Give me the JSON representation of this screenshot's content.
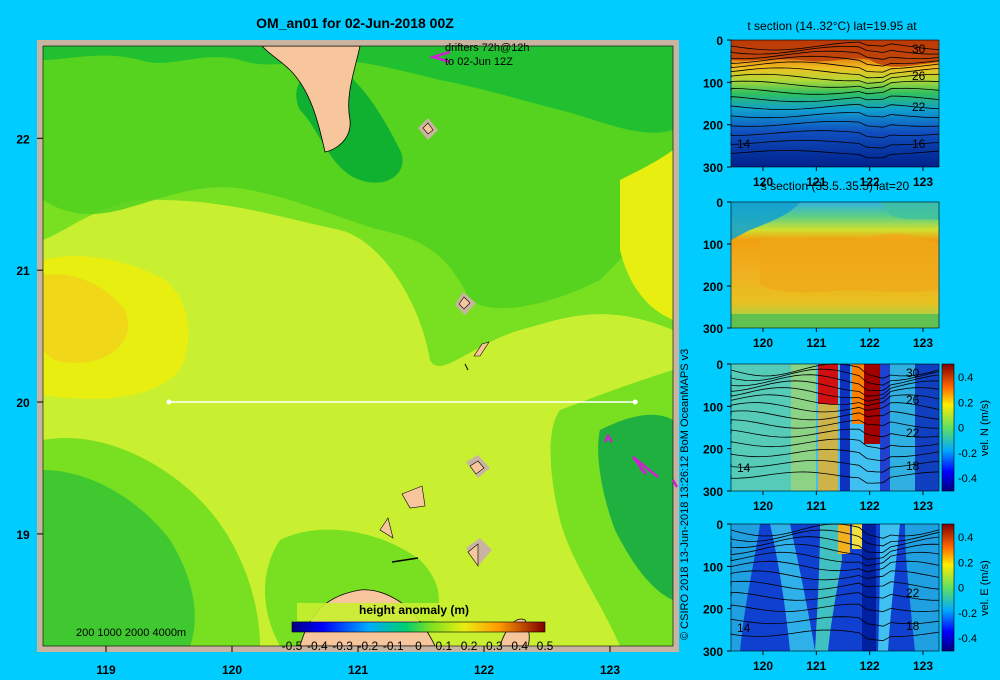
{
  "chart_data": [
    {
      "type": "heatmap",
      "title": "OM_an01 for 02-Jun-2018 00Z",
      "x_ticks": [
        "119",
        "120",
        "121",
        "122",
        "123"
      ],
      "y_ticks": [
        "22",
        "21",
        "20",
        "19"
      ],
      "xlim": [
        118.5,
        123.5
      ],
      "ylim": [
        18.15,
        22.7
      ],
      "drifters_note": [
        "drifters 72h@12h",
        "to 02-Jun 12Z"
      ],
      "depth_scale": "200  1000  2000  4000m",
      "colorbar": {
        "label": "height anomaly  (m)",
        "ticks": [
          "-0.5",
          "-0.4",
          "-0.3",
          "-0.2",
          "-0.1",
          "0",
          "0.1",
          "0.2",
          "0.3",
          "0.4",
          "0.5"
        ],
        "range": [
          -0.5,
          0.5
        ]
      },
      "section_line": {
        "lat": 20,
        "lon_start": 119.5,
        "lon_end": 123.2
      },
      "credit": "© CSIRO 2018   13-Jun-2018 13:26:12 BoM OceanMAPS v3"
    },
    {
      "type": "heatmap",
      "title": "t section (14..32°C) lat=19.95 at",
      "x_ticks": [
        "120",
        "121",
        "122",
        "123"
      ],
      "y_ticks": [
        "0",
        "100",
        "200",
        "300"
      ],
      "contour_labels": [
        "30",
        "26",
        "22",
        "16",
        "14"
      ]
    },
    {
      "type": "heatmap",
      "title": "s section (33.5..35.5) lat=20",
      "x_ticks": [
        "120",
        "121",
        "122",
        "123"
      ],
      "y_ticks": [
        "0",
        "100",
        "200",
        "300"
      ]
    },
    {
      "type": "heatmap",
      "title": "",
      "x_ticks": [
        "120",
        "121",
        "122",
        "123"
      ],
      "y_ticks": [
        "0",
        "100",
        "200",
        "300"
      ],
      "contour_labels": [
        "30",
        "26",
        "22",
        "18",
        "14"
      ],
      "colorbar": {
        "label": "vel. N (m/s)",
        "ticks": [
          "0.4",
          "0.2",
          "0",
          "-0.2",
          "-0.4"
        ]
      }
    },
    {
      "type": "heatmap",
      "title": "",
      "x_ticks": [
        "120",
        "121",
        "122",
        "123"
      ],
      "y_ticks": [
        "0",
        "100",
        "200",
        "300"
      ],
      "contour_labels": [
        "22",
        "18",
        "14"
      ],
      "colorbar": {
        "label": "vel. E (m/s)",
        "ticks": [
          "0.4",
          "0.2",
          "0",
          "-0.2",
          "-0.4"
        ]
      }
    }
  ],
  "colors": {
    "background": "#00ccff",
    "land": "#f7c69c",
    "shelf": "#c8b4a0",
    "drifter": "#d020d0"
  }
}
